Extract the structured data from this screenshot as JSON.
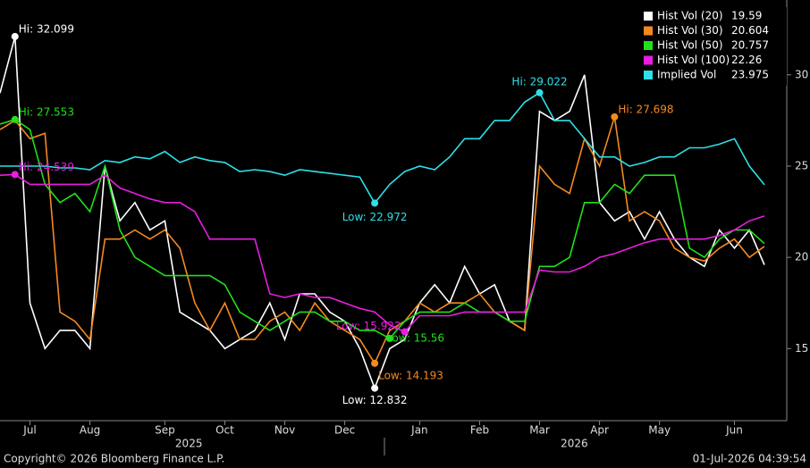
{
  "chart_data": {
    "type": "line",
    "categories": [
      null,
      null,
      "Jul",
      null,
      null,
      null,
      "Aug",
      null,
      null,
      null,
      null,
      "Sep",
      null,
      null,
      null,
      "Oct",
      null,
      null,
      null,
      "Nov",
      null,
      null,
      null,
      "Dec",
      null,
      null,
      null,
      null,
      "Jan",
      null,
      null,
      null,
      "Feb",
      null,
      null,
      null,
      "Mar",
      null,
      null,
      null,
      "Apr",
      null,
      null,
      null,
      "May",
      null,
      null,
      null,
      null,
      "Jun",
      null,
      null
    ],
    "year_labels": [
      "2025",
      "2026"
    ],
    "ylim": [
      11.1,
      34.1
    ],
    "yticks": [
      15,
      20,
      25,
      30
    ],
    "series": [
      {
        "name": "Hist Vol (20)",
        "color": "#ffffff",
        "hi_label": "Hi: 32.099",
        "low_label": "Low: 12.832",
        "values": [
          29,
          32.099,
          17.5,
          15,
          16,
          16,
          15,
          25,
          22,
          23,
          21.5,
          22,
          17,
          16.5,
          16,
          15,
          15.5,
          16,
          17.5,
          15.5,
          18,
          18,
          17,
          16.5,
          15,
          12.832,
          15,
          15.5,
          17.5,
          18.5,
          17.5,
          19.5,
          18,
          18.5,
          16.5,
          16,
          28,
          27.5,
          28,
          30,
          23,
          22,
          22.5,
          21,
          22.5,
          21,
          20,
          19.5,
          21.5,
          20.5,
          21.5,
          19.59
        ]
      },
      {
        "name": "Hist Vol (30)",
        "color": "#f5891f",
        "hi_label": "Hi: 27.698",
        "low_label": "Low: 14.193",
        "values": [
          27,
          27.5,
          26.5,
          26.8,
          17,
          16.5,
          15.5,
          21,
          21,
          21.5,
          21,
          21.5,
          20.5,
          17.5,
          16,
          17.5,
          15.5,
          15.5,
          16.5,
          17,
          16,
          17.5,
          16.5,
          16,
          15.5,
          14.193,
          16,
          16.5,
          17.5,
          17,
          17.5,
          17.5,
          18,
          17,
          16.5,
          16,
          25,
          24,
          23.5,
          26.5,
          25,
          27.698,
          22,
          22.5,
          22,
          20.5,
          20,
          19.8,
          20.5,
          21,
          20,
          20.604
        ]
      },
      {
        "name": "Hist Vol (50)",
        "color": "#22e01b",
        "hi_label": "Hi: 27.553",
        "low_label": "Low: 15.56",
        "values": [
          27.3,
          27.553,
          27,
          24,
          23,
          23.5,
          22.5,
          25,
          21.5,
          20,
          19.5,
          19,
          19,
          19,
          19,
          18.5,
          17,
          16.5,
          16,
          16.5,
          17,
          17,
          16.5,
          16.5,
          16,
          16,
          15.56,
          16.5,
          17,
          17,
          17,
          17.5,
          17,
          17,
          16.5,
          16.5,
          19.5,
          19.5,
          20,
          23,
          23,
          24,
          23.5,
          24.5,
          24.5,
          24.5,
          20.5,
          20,
          21,
          21.5,
          21.5,
          20.757
        ]
      },
      {
        "name": "Hist Vol (100)",
        "color": "#e81ee0",
        "hi_label": "Hi: 24.539",
        "low_label": "Low: 15.922",
        "values": [
          24.5,
          24.539,
          24,
          24,
          24,
          24,
          24,
          24.5,
          23.8,
          23.5,
          23.2,
          23,
          23,
          22.5,
          21,
          21,
          21,
          21,
          18,
          17.8,
          18,
          17.8,
          17.8,
          17.5,
          17.2,
          17,
          16.3,
          15.922,
          16.8,
          16.8,
          16.8,
          17,
          17,
          17,
          17,
          17,
          19.3,
          19.2,
          19.2,
          19.5,
          20,
          20.2,
          20.5,
          20.8,
          21,
          21,
          21,
          21,
          21.2,
          21.5,
          22,
          22.26
        ]
      },
      {
        "name": "Implied Vol",
        "color": "#2ee0e8",
        "hi_label": "Hi: 29.022",
        "low_label": "Low: 22.972",
        "values": [
          25,
          25,
          25,
          25,
          24.9,
          24.9,
          24.8,
          25.3,
          25.2,
          25.5,
          25.4,
          25.8,
          25.2,
          25.5,
          25.3,
          25.2,
          24.7,
          24.8,
          24.7,
          24.5,
          24.8,
          24.7,
          24.6,
          24.5,
          24.4,
          22.972,
          24,
          24.7,
          25,
          24.8,
          25.5,
          26.5,
          26.5,
          27.5,
          27.5,
          28.5,
          29.022,
          27.5,
          27.5,
          26.5,
          25.5,
          25.5,
          25,
          25.2,
          25.5,
          25.5,
          26,
          26,
          26.2,
          26.5,
          25,
          23.975
        ]
      }
    ]
  },
  "footer": {
    "copyright": "Copyright© 2026 Bloomberg Finance L.P.",
    "timestamp": "01-Jul-2026 04:39:54"
  }
}
